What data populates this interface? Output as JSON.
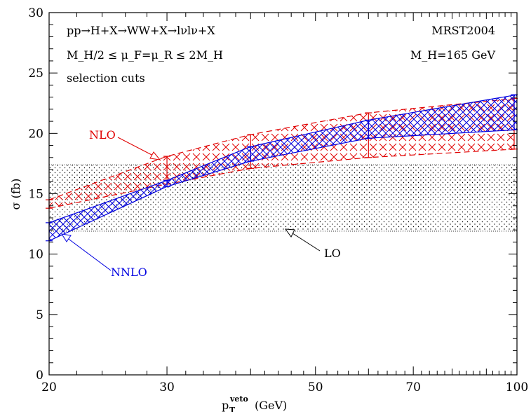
{
  "chart_data": {
    "type": "area",
    "x_scale": "log",
    "xlim": [
      20,
      100
    ],
    "ylim": [
      0,
      30
    ],
    "xlabel_main": "p",
    "xlabel_sub": "T",
    "xlabel_sup": "veto",
    "xlabel_unit": "(GeV)",
    "ylabel": "σ (fb)",
    "x_ticks": [
      20,
      30,
      50,
      70,
      100
    ],
    "y_ticks": [
      0,
      5,
      10,
      15,
      20,
      25,
      30
    ],
    "annotations": {
      "process": "pp→H+X→WW+X→lνlν+X",
      "pdf": "MRST2004",
      "scale_range": "M_H/2 ≤ μ_F=μ_R ≤ 2M_H",
      "mass": "M_H=165 GeV",
      "cuts": "selection cuts"
    },
    "series": [
      {
        "name": "LO",
        "color": "#000000",
        "x": [
          20,
          100
        ],
        "lower": [
          11.9,
          11.9
        ],
        "upper": [
          17.4,
          17.4
        ]
      },
      {
        "name": "NLO",
        "color": "#e00000",
        "x": [
          20,
          30,
          40,
          60,
          100
        ],
        "lower": [
          13.8,
          15.8,
          17.1,
          18.0,
          18.7
        ],
        "upper": [
          14.5,
          18.1,
          19.9,
          21.7,
          22.9
        ]
      },
      {
        "name": "NNLO",
        "color": "#0000e0",
        "x": [
          20,
          30,
          40,
          60,
          100
        ],
        "lower": [
          11.1,
          15.6,
          17.7,
          19.6,
          20.3
        ],
        "upper": [
          12.6,
          16.1,
          18.9,
          21.1,
          23.2
        ]
      }
    ]
  }
}
